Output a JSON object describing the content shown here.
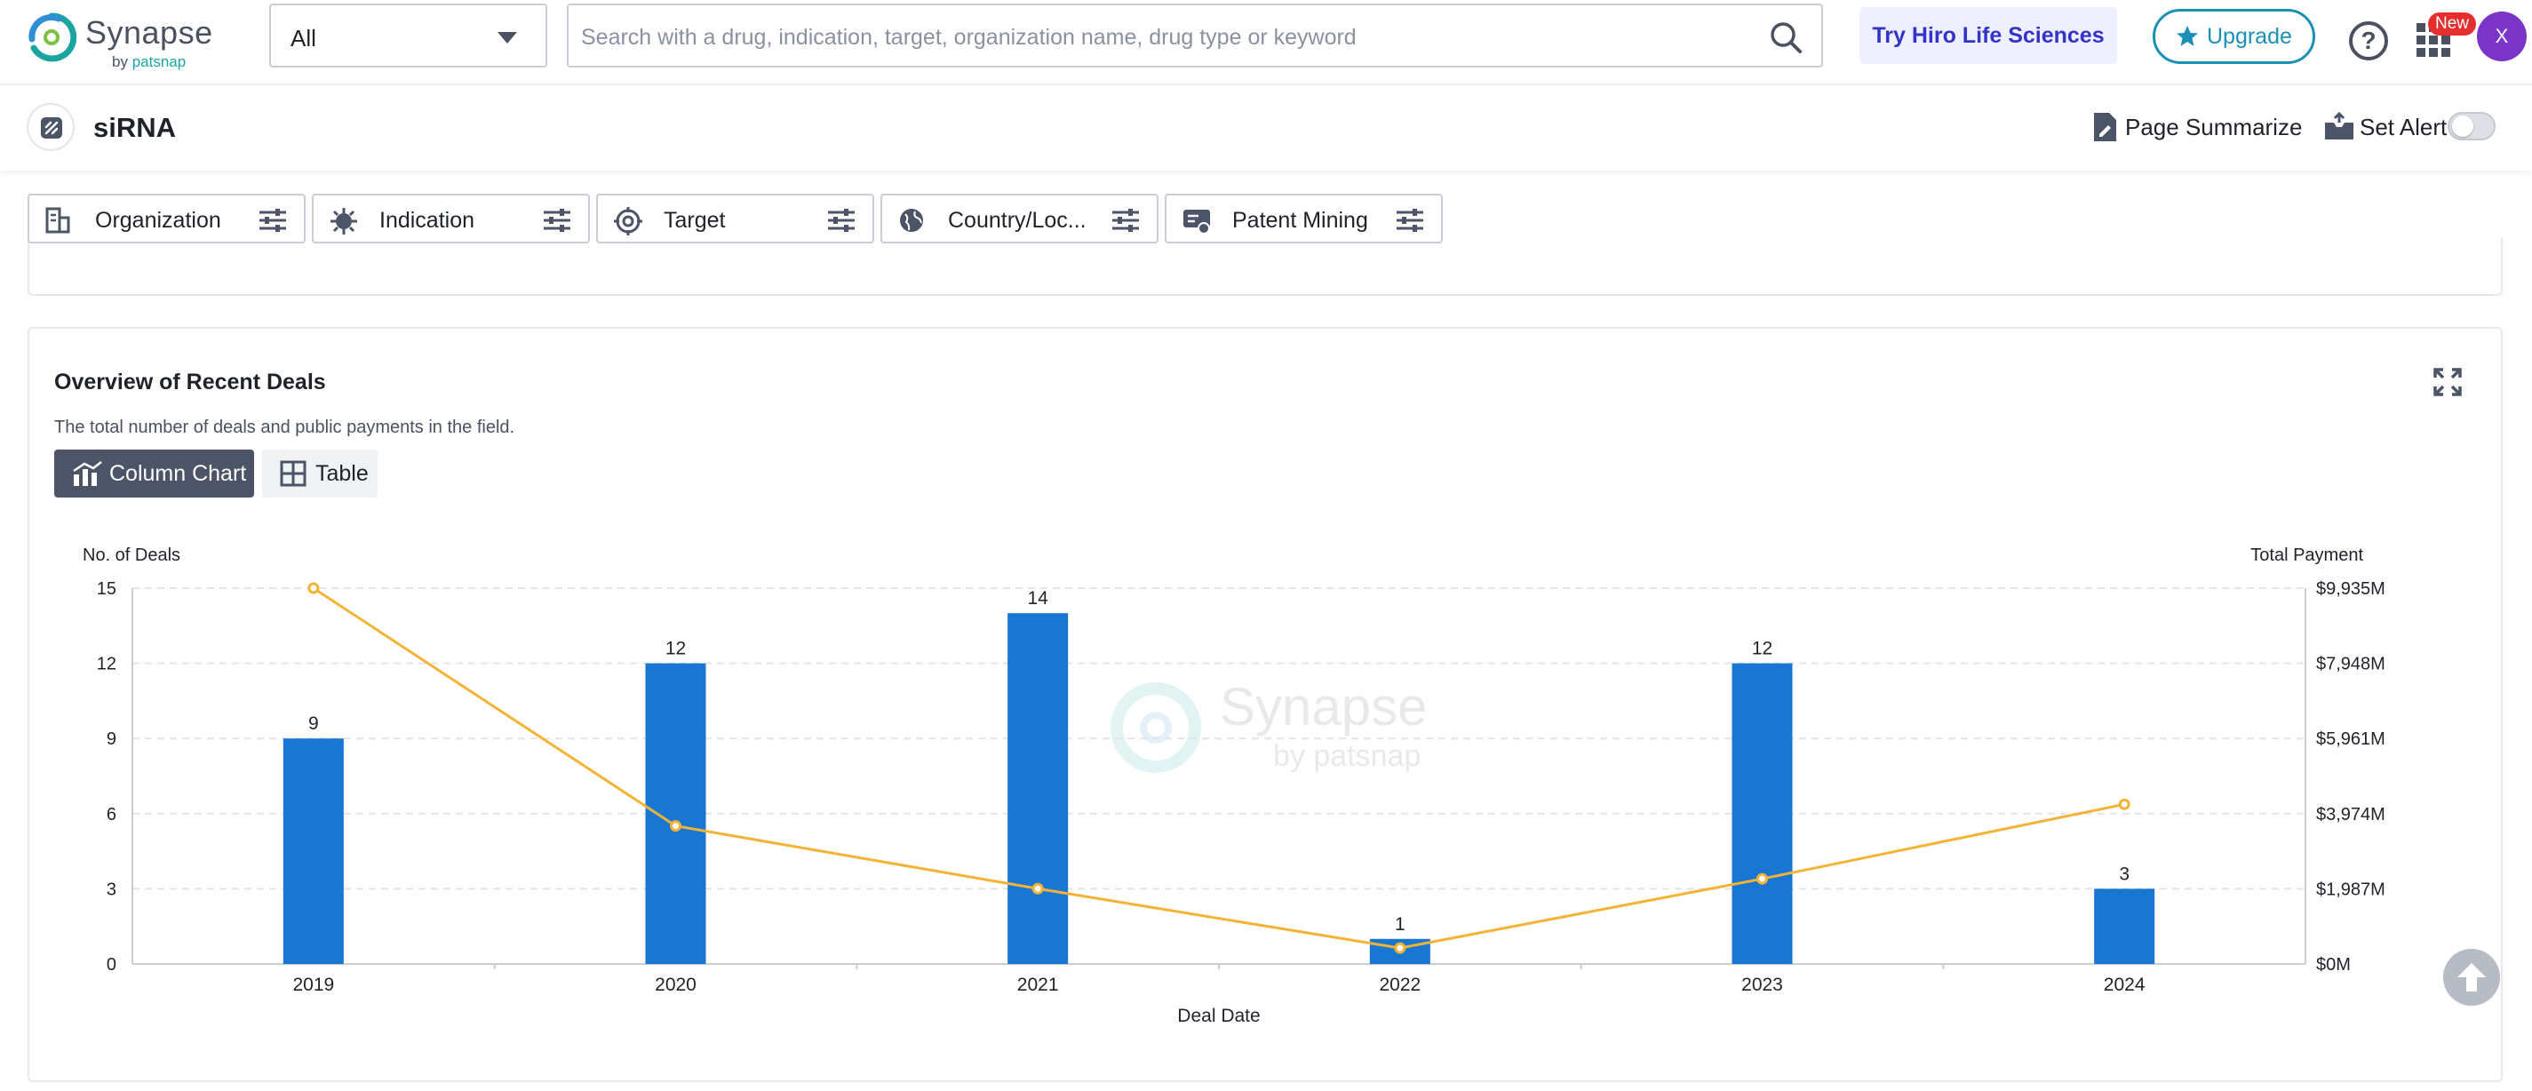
{
  "brand": {
    "name": "Synapse",
    "by": "by ",
    "sub": "patsnap"
  },
  "header": {
    "scope_value": "All",
    "search_placeholder": "Search with a drug, indication, target, organization name, drug type or keyword",
    "try_hiro": "Try Hiro Life Sciences",
    "upgrade": "Upgrade",
    "help": "?",
    "new_badge": "New",
    "avatar": "X"
  },
  "page": {
    "title": "siRNA",
    "summarize": "Page Summarize",
    "set_alert": "Set Alert",
    "alert_enabled": false
  },
  "filters": [
    {
      "label": "Organization",
      "icon": "building-icon"
    },
    {
      "label": "Indication",
      "icon": "virus-icon"
    },
    {
      "label": "Target",
      "icon": "target-icon"
    },
    {
      "label": "Country/Loc...",
      "icon": "globe-icon"
    },
    {
      "label": "Patent Mining",
      "icon": "patent-icon"
    }
  ],
  "deals_panel": {
    "title": "Overview of Recent Deals",
    "subtitle": "The total number of deals and public payments in the field.",
    "view_chart": "Column Chart",
    "view_table": "Table",
    "watermark": "Synapse",
    "watermark_sub": "by patsnap"
  },
  "chart_data": {
    "type": "bar",
    "categories": [
      "2019",
      "2020",
      "2021",
      "2022",
      "2023",
      "2024"
    ],
    "xlabel": "Deal Date",
    "ylabel": "No. of Deals",
    "y2label": "Total Payment",
    "ylim": [
      0,
      15
    ],
    "yticks": [
      "0",
      "3",
      "6",
      "9",
      "12",
      "15"
    ],
    "y2lim": [
      0,
      9935
    ],
    "y2ticks": [
      "$0M",
      "$1,987M",
      "$3,974M",
      "$5,961M",
      "$7,948M",
      "$9,935M"
    ],
    "series": [
      {
        "name": "No. of Deals",
        "type": "bar",
        "axis": "left",
        "values": [
          9,
          12,
          14,
          1,
          12,
          3
        ],
        "color": "#1976d2"
      },
      {
        "name": "Total Payment",
        "type": "line",
        "axis": "right",
        "values": [
          9935,
          3650,
          1990,
          420,
          2250,
          4220
        ],
        "color": "#f5b335"
      }
    ],
    "grid": true,
    "grid_style": "dashed"
  },
  "colors": {
    "bar": "#1976d2",
    "line": "#f5b335",
    "accent": "#1b90b7",
    "hiro": "#3433c9",
    "avatar": "#7a35c8"
  }
}
